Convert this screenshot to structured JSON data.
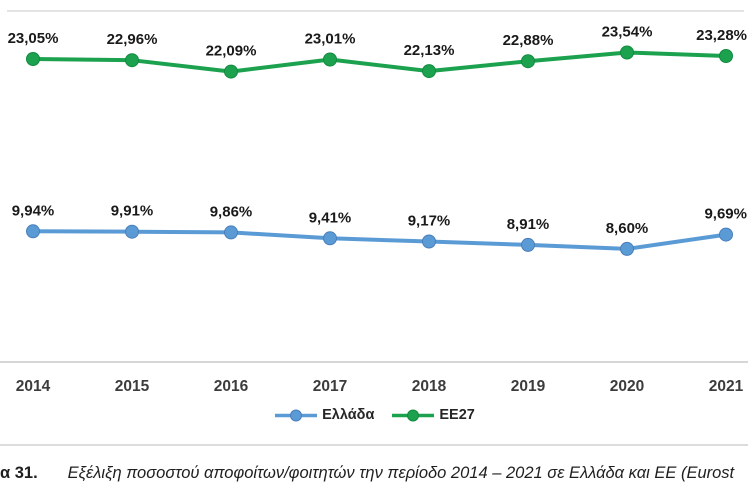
{
  "chart_data": {
    "type": "line",
    "title": "",
    "xlabel": "",
    "ylabel": "",
    "categories": [
      "2014",
      "2015",
      "2016",
      "2017",
      "2018",
      "2019",
      "2020",
      "2021"
    ],
    "series": [
      {
        "name": "Ελλάδα",
        "color": "#5B9BD5",
        "marker_stroke": "#4A7EBB",
        "values": [
          9.94,
          9.91,
          9.86,
          9.41,
          9.17,
          8.91,
          8.6,
          9.69
        ],
        "labels": [
          "9,94%",
          "9,91%",
          "9,86%",
          "9,41%",
          "9,17%",
          "8,91%",
          "8,60%",
          "9,69%"
        ]
      },
      {
        "name": "EE27",
        "color": "#1CA24E",
        "marker_stroke": "#128A40",
        "values": [
          23.05,
          22.96,
          22.09,
          23.01,
          22.13,
          22.88,
          23.54,
          23.28
        ],
        "labels": [
          "23,05%",
          "22,96%",
          "22,09%",
          "23,01%",
          "22,13%",
          "22,88%",
          "23,54%",
          "23,28%"
        ]
      }
    ],
    "ylim": [
      0,
      26.7
    ],
    "grid": false,
    "data_labels": true,
    "legend_position": "bottom"
  },
  "caption": {
    "label": "α 31.",
    "text": "Εξέλιξη ποσοστού αποφοίτων/φοιτητών την περίοδο 2014 – 2021 σε Ελλάδα και ΕΕ (Eurost"
  }
}
